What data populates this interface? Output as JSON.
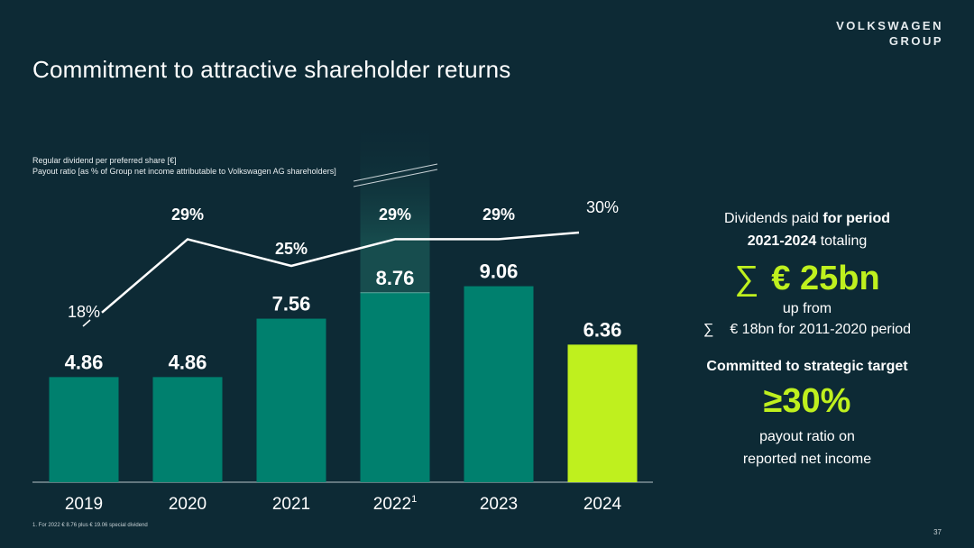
{
  "brand": {
    "line1": "VOLKSWAGEN",
    "line2": "GROUP"
  },
  "title": "Commitment to attractive shareholder returns",
  "legend": {
    "dividend": "Regular dividend per preferred share [€]",
    "payout": "Payout ratio [as % of Group net income attributable to Volkswagen AG shareholders]"
  },
  "chart_data": {
    "type": "bar",
    "categories": [
      "2019",
      "2020",
      "2021",
      "2022",
      "2023",
      "2024"
    ],
    "category_superscripts": [
      "",
      "",
      "",
      "1",
      "",
      ""
    ],
    "series": [
      {
        "values": [
          4.86,
          4.86,
          7.56,
          8.76,
          9.06,
          6.36
        ]
      },
      {
        "type": "line",
        "values": [
          18,
          29,
          25,
          29,
          29,
          30
        ]
      }
    ],
    "bar_labels": [
      "4.86",
      "4.86",
      "7.56",
      "8.76",
      "9.06",
      "6.36"
    ],
    "line_labels": [
      "18%",
      "29%",
      "25%",
      "29%",
      "29%",
      "30%"
    ],
    "bar_colors": [
      "#00806e",
      "#00806e",
      "#00806e",
      "#00806e",
      "#00806e",
      "#bff01e"
    ],
    "line_color": "#ffffff",
    "highlight_category": "2022"
  },
  "side": {
    "intro": "Dividends paid",
    "intro_bold": "for period",
    "period_bold": "2021-2024",
    "totaling": "totaling",
    "sigma": "∑",
    "total": "€ 25bn",
    "up_from": "up from",
    "prev_sigma": "∑",
    "prev": "€ 18bn for 2011-2020 period",
    "target_label": "Committed to strategic target",
    "target_value": "≥30%",
    "payout_line1": "payout ratio on",
    "payout_line2": "reported net income"
  },
  "footnote": "1. For 2022 € 8.76 plus € 19.06 special dividend",
  "page_number": "37"
}
